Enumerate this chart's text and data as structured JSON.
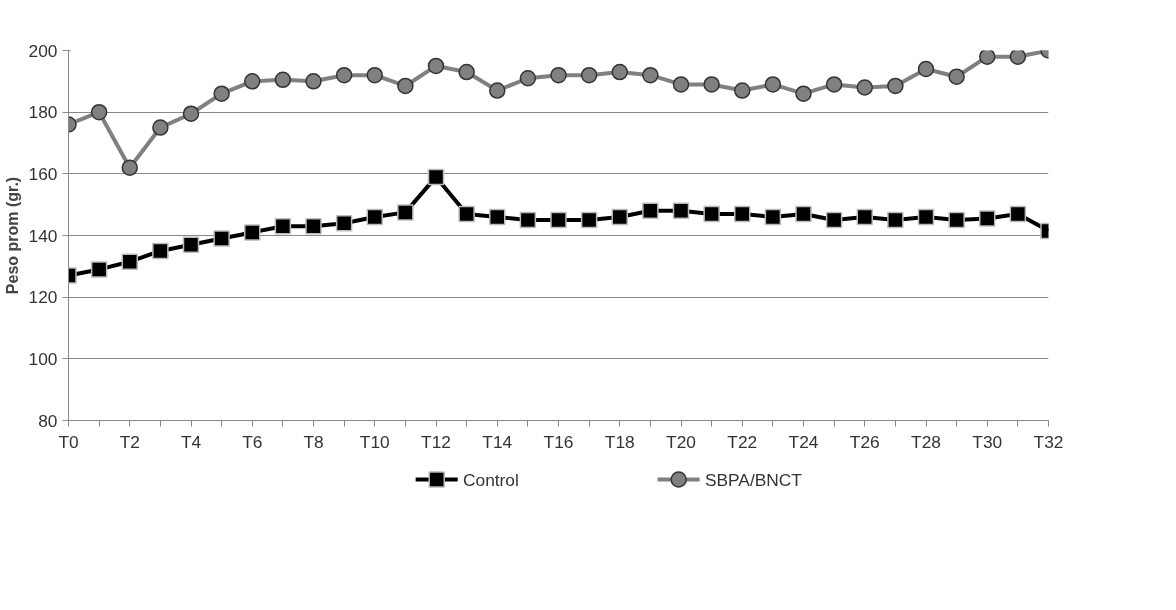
{
  "chart_data": {
    "type": "line",
    "ylabel": "Peso prom (gr.)",
    "categories": [
      "T0",
      null,
      "T2",
      null,
      "T4",
      null,
      "T6",
      null,
      "T8",
      null,
      "T10",
      null,
      "T12",
      null,
      "T14",
      null,
      "T16",
      null,
      "T18",
      null,
      "T20",
      null,
      "T22",
      null,
      "T24",
      null,
      "T26",
      null,
      "T28",
      null,
      "T30",
      null,
      "T32"
    ],
    "series": [
      {
        "name": "Control",
        "color": "#000000",
        "marker": "square",
        "values": [
          127,
          129,
          131.5,
          135,
          137,
          139,
          141,
          143,
          143,
          144,
          146,
          147.5,
          159,
          147,
          146,
          145,
          145,
          145,
          146,
          148,
          148,
          147,
          147,
          146,
          147,
          145,
          146,
          145,
          146,
          145,
          145.5,
          147,
          141.5
        ]
      },
      {
        "name": "SBPA/BNCT",
        "color": "#808080",
        "marker": "circle",
        "values": [
          176,
          180,
          162,
          175,
          179.5,
          186,
          190,
          190.5,
          190,
          192,
          192,
          188.5,
          195,
          193,
          187,
          191,
          192,
          192,
          193,
          192,
          189,
          189,
          187,
          189,
          186,
          189,
          188,
          188.5,
          194,
          191.5,
          198,
          198,
          200
        ]
      }
    ],
    "ylim": [
      80,
      200
    ],
    "yticks": [
      80,
      100,
      120,
      140,
      160,
      180,
      200
    ],
    "grid": "y",
    "legend": "bottom",
    "line_style": "solid"
  }
}
